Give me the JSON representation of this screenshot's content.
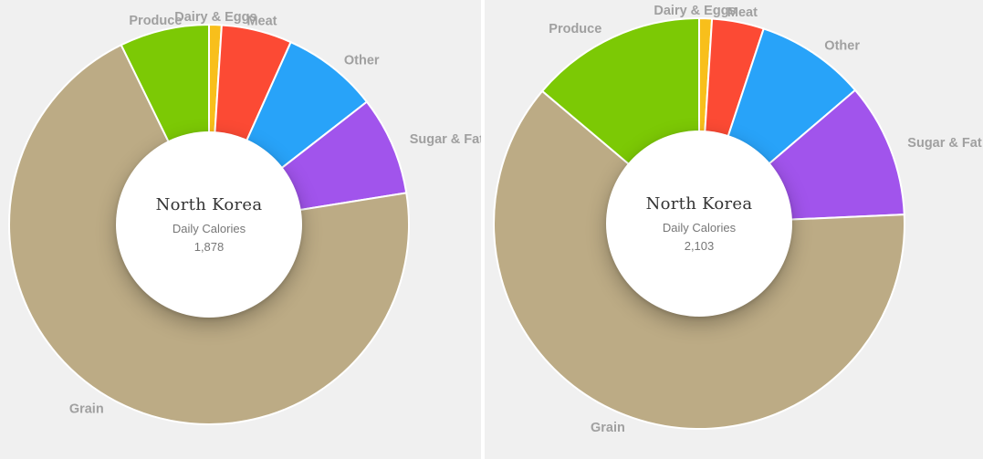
{
  "colors": {
    "Grain": "#bcab85",
    "Produce": "#7cc905",
    "Dairy & Eggs": "#f8bf1b",
    "Meat": "#fc4a34",
    "Other": "#28a3f9",
    "Sugar & Fat": "#a154ec"
  },
  "chart_data": [
    {
      "type": "pie",
      "center_title": "North Korea",
      "center_subtitle": "Daily Calories",
      "center_value": "1,878",
      "categories": [
        "Dairy & Eggs",
        "Meat",
        "Other",
        "Sugar & Fat",
        "Grain",
        "Produce"
      ],
      "values": [
        19,
        107,
        146,
        150,
        1320,
        136
      ],
      "labels": {
        "Dairy & Eggs": "Dairy & Eggs",
        "Meat": "Meat",
        "Other": "Other",
        "Sugar & Fat": "Sugar & Fat",
        "Grain": "Grain",
        "Produce": "Produce"
      }
    },
    {
      "type": "pie",
      "center_title": "North Korea",
      "center_subtitle": "Daily Calories",
      "center_value": "2,103",
      "categories": [
        "Dairy & Eggs",
        "Meat",
        "Other",
        "Sugar & Fat",
        "Grain",
        "Produce"
      ],
      "values": [
        21,
        86,
        182,
        222,
        1301,
        291
      ],
      "labels": {
        "Dairy & Eggs": "Dairy & Eggs",
        "Meat": "Meat",
        "Other": "Other",
        "Sugar & Fat": "Sugar & Fat",
        "Grain": "Grain",
        "Produce": "Produce"
      }
    }
  ]
}
